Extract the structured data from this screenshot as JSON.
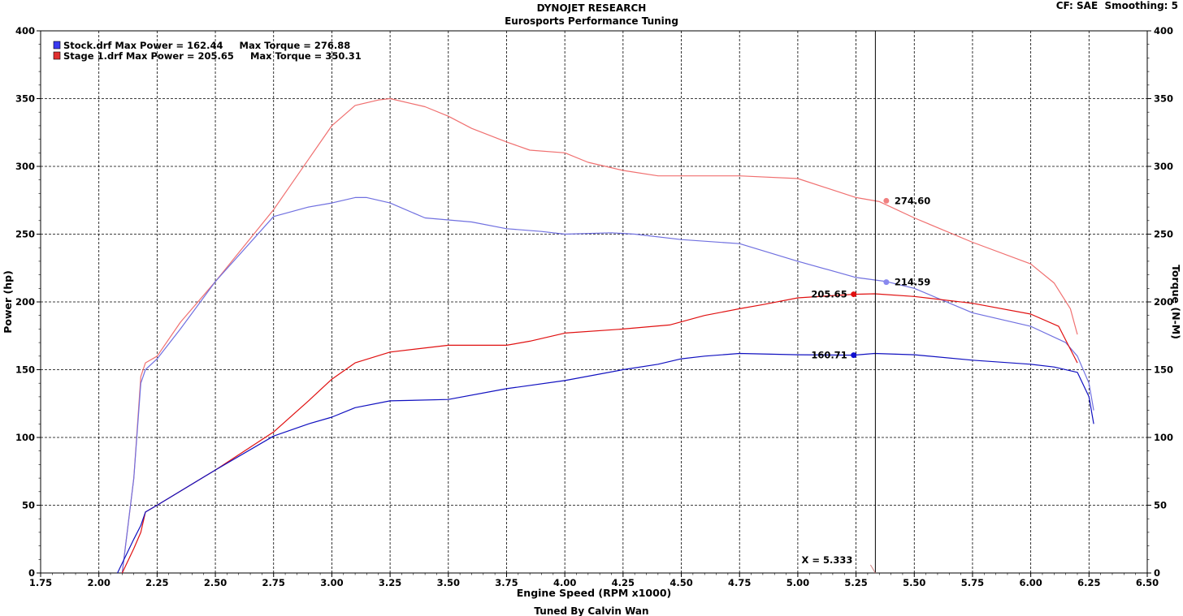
{
  "header": {
    "title": "DYNOJET RESEARCH",
    "subtitle": "Eurosports Performance Tuning",
    "corner_info": "CF: SAE  Smoothing: 5",
    "footer": "Tuned By Calvin Wan"
  },
  "legend": {
    "items": [
      {
        "text": "Stock.drf Max Power = 162.44     Max Torque = 276.88",
        "color": "#3a3af0"
      },
      {
        "text": "Stage 1.drf Max Power = 205.65     Max Torque = 350.31",
        "color": "#e03030"
      }
    ]
  },
  "cursor": {
    "label": "X = 5.333",
    "x": 5.333,
    "readouts": [
      {
        "text": "274.60",
        "x": 5.38,
        "y": 274.6,
        "color": "#f08080",
        "side": "right"
      },
      {
        "text": "214.59",
        "x": 5.38,
        "y": 214.59,
        "color": "#8888ee",
        "side": "right"
      },
      {
        "text": "205.65",
        "x": 5.24,
        "y": 205.65,
        "color": "#e01010",
        "side": "left"
      },
      {
        "text": "160.71",
        "x": 5.24,
        "y": 160.71,
        "color": "#1010d0",
        "side": "left"
      }
    ]
  },
  "chart_data": {
    "type": "line",
    "xlabel": "Engine Speed (RPM x1000)",
    "ylabel": "Power (hp)",
    "y2label": "Torque (N-M)",
    "xlim": [
      1.75,
      6.5
    ],
    "ylim": [
      0,
      400
    ],
    "y2lim": [
      0,
      400
    ],
    "x_ticks": [
      "1.75",
      "2.00",
      "2.25",
      "2.50",
      "2.75",
      "3.00",
      "3.25",
      "3.50",
      "3.75",
      "4.00",
      "4.25",
      "4.50",
      "4.75",
      "5.00",
      "5.25",
      "5.50",
      "5.75",
      "6.00",
      "6.25",
      "6.50"
    ],
    "y_ticks": [
      "0",
      "50",
      "100",
      "150",
      "200",
      "250",
      "300",
      "350",
      "400"
    ],
    "grid": true,
    "legend_position": "top-left",
    "series": [
      {
        "name": "Stage 1.drf Torque",
        "axis": "right",
        "color": "#f07070",
        "x": [
          2.1,
          2.15,
          2.18,
          2.2,
          2.25,
          2.35,
          2.5,
          2.75,
          3.0,
          3.1,
          3.2,
          3.25,
          3.4,
          3.5,
          3.6,
          3.75,
          3.85,
          4.0,
          4.1,
          4.25,
          4.4,
          4.5,
          4.75,
          5.0,
          5.25,
          5.35,
          5.5,
          5.75,
          6.0,
          6.1,
          6.17,
          6.2
        ],
        "y": [
          0,
          70,
          145,
          155,
          160,
          185,
          215,
          268,
          330,
          345,
          349,
          350,
          344,
          337,
          328,
          318,
          312,
          310,
          303,
          297,
          293,
          293,
          293,
          291,
          277,
          274,
          262,
          244,
          228,
          214,
          195,
          176
        ]
      },
      {
        "name": "Stock.drf Torque",
        "axis": "right",
        "color": "#7070e0",
        "x": [
          2.1,
          2.15,
          2.18,
          2.2,
          2.25,
          2.35,
          2.5,
          2.75,
          2.9,
          3.0,
          3.1,
          3.15,
          3.25,
          3.4,
          3.6,
          3.75,
          3.9,
          4.0,
          4.2,
          4.3,
          4.5,
          4.75,
          5.0,
          5.25,
          5.38,
          5.5,
          5.75,
          6.0,
          6.15,
          6.2,
          6.25,
          6.27
        ],
        "y": [
          0,
          70,
          140,
          150,
          158,
          180,
          215,
          263,
          270,
          273,
          277,
          277,
          273,
          262,
          259,
          254,
          252,
          250,
          251,
          250,
          246,
          243,
          230,
          218,
          215,
          210,
          192,
          182,
          170,
          160,
          140,
          120
        ]
      },
      {
        "name": "Stage 1.drf Power",
        "axis": "left",
        "color": "#e01010",
        "x": [
          2.1,
          2.15,
          2.18,
          2.2,
          2.25,
          2.5,
          2.75,
          2.9,
          3.0,
          3.1,
          3.25,
          3.5,
          3.75,
          3.85,
          4.0,
          4.25,
          4.45,
          4.6,
          4.75,
          4.85,
          5.0,
          5.24,
          5.33,
          5.5,
          5.75,
          6.0,
          6.12,
          6.2
        ],
        "y": [
          0,
          18,
          30,
          45,
          50,
          76,
          104,
          127,
          143,
          155,
          163,
          168,
          168,
          171,
          177,
          180,
          183,
          190,
          195,
          198,
          203,
          205.65,
          206,
          204,
          199,
          191,
          182,
          155
        ]
      },
      {
        "name": "Stock.drf Power",
        "axis": "left",
        "color": "#1010c0",
        "x": [
          2.08,
          2.15,
          2.18,
          2.2,
          2.25,
          2.5,
          2.75,
          2.9,
          3.0,
          3.1,
          3.25,
          3.5,
          3.75,
          4.0,
          4.25,
          4.4,
          4.5,
          4.6,
          4.75,
          5.0,
          5.24,
          5.33,
          5.5,
          5.75,
          6.0,
          6.1,
          6.2,
          6.25,
          6.27
        ],
        "y": [
          0,
          25,
          35,
          45,
          50,
          76,
          101,
          110,
          115,
          122,
          127,
          128,
          136,
          142,
          150,
          154,
          158,
          160,
          162,
          161,
          160.71,
          162,
          161,
          157,
          154,
          152,
          148,
          130,
          110
        ]
      }
    ]
  }
}
